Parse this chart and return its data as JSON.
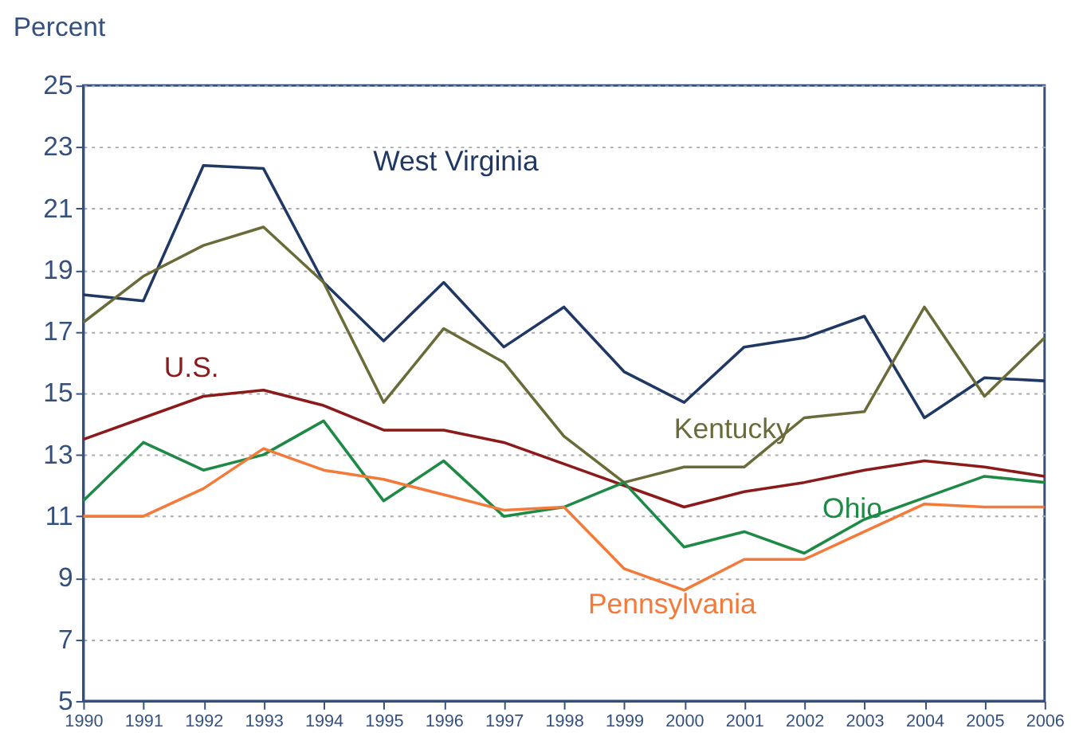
{
  "chart_data": {
    "type": "line",
    "ylabel": "Percent",
    "x": [
      1990,
      1991,
      1992,
      1993,
      1994,
      1995,
      1996,
      1997,
      1998,
      1999,
      2000,
      2001,
      2002,
      2003,
      2004,
      2005,
      2006
    ],
    "xlim": [
      1990,
      2006
    ],
    "xticks": [
      1990,
      1991,
      1992,
      1993,
      1994,
      1995,
      1996,
      1997,
      1998,
      1999,
      2000,
      2001,
      2002,
      2003,
      2004,
      2005,
      2006
    ],
    "ylim": [
      5,
      25
    ],
    "yticks": [
      5,
      7,
      9,
      11,
      13,
      15,
      17,
      19,
      21,
      23,
      25
    ],
    "grid": "y",
    "legend": false,
    "marker": "none",
    "line_style": "solid",
    "series": [
      {
        "name": "West Virginia",
        "color": "#1f3864",
        "values": [
          18.2,
          18.0,
          22.4,
          22.3,
          18.6,
          16.7,
          18.6,
          16.5,
          17.8,
          15.7,
          14.7,
          16.5,
          16.8,
          17.5,
          14.2,
          15.5,
          15.4
        ]
      },
      {
        "name": "Kentucky",
        "color": "#6b6b3a",
        "values": [
          17.3,
          18.8,
          19.8,
          20.4,
          18.6,
          14.7,
          17.1,
          16.0,
          13.6,
          12.1,
          12.6,
          12.6,
          14.2,
          14.4,
          17.8,
          14.9,
          16.8
        ]
      },
      {
        "name": "U.S.",
        "color": "#8b1a1a",
        "values": [
          13.5,
          14.2,
          14.9,
          15.1,
          14.6,
          13.8,
          13.8,
          13.4,
          12.7,
          12.0,
          11.3,
          11.8,
          12.1,
          12.5,
          12.8,
          12.6,
          12.3
        ]
      },
      {
        "name": "Ohio",
        "color": "#1e8a46",
        "values": [
          11.5,
          13.4,
          12.5,
          13.0,
          14.1,
          11.5,
          12.8,
          11.0,
          11.3,
          12.1,
          10.0,
          10.5,
          9.8,
          10.9,
          11.6,
          12.3,
          12.1
        ]
      },
      {
        "name": "Pennsylvania",
        "color": "#f47a3a",
        "values": [
          11.0,
          11.0,
          11.9,
          13.2,
          12.5,
          12.2,
          11.7,
          11.2,
          11.3,
          9.3,
          8.6,
          9.6,
          9.6,
          10.5,
          11.4,
          11.3,
          11.3
        ]
      }
    ]
  }
}
